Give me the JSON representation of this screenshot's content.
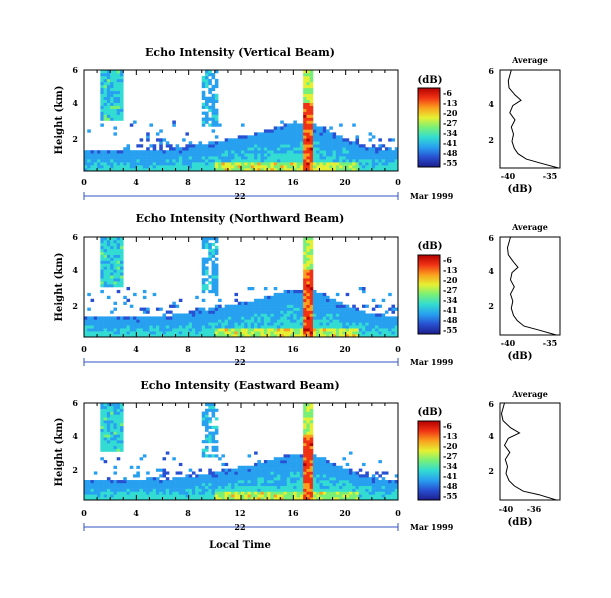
{
  "chart_data": [
    {
      "type": "heatmap",
      "title": "Echo Intensity (Vertical Beam)",
      "ylabel": "Height (km)",
      "x_ticks": [
        "0",
        "4",
        "8",
        "12",
        "16",
        "20",
        "0"
      ],
      "xlim": [
        0,
        24
      ],
      "y_ticks": [
        "2",
        "4",
        "6"
      ],
      "ylim": [
        0.5,
        6
      ],
      "day_label": "22",
      "date_label": "Mar 1999",
      "colorbar": {
        "label": "(dB)",
        "ticks": [
          "-6",
          "-13",
          "-20",
          "-27",
          "-34",
          "-41",
          "-48",
          "-55"
        ]
      },
      "profile": {
        "title": "Average",
        "xlabel": "(dB)",
        "x_ticks": [
          "-40",
          "-35"
        ],
        "xlim": [
          -42,
          -34
        ],
        "y_ticks": [
          "2",
          "4",
          "6"
        ],
        "ylim": [
          0.5,
          6
        ],
        "heights": [
          0.5,
          0.8,
          1.0,
          1.3,
          1.6,
          2.0,
          2.4,
          2.8,
          3.2,
          3.6,
          4.0,
          4.3,
          4.6,
          5.0,
          5.4,
          6.0
        ],
        "values": [
          -34.2,
          -36.8,
          -38.5,
          -39.6,
          -40.1,
          -40.4,
          -40.2,
          -40.5,
          -40.0,
          -40.7,
          -40.3,
          -39.2,
          -40.0,
          -40.8,
          -40.9,
          -40.5
        ]
      }
    },
    {
      "type": "heatmap",
      "title": "Echo Intensity (Northward Beam)",
      "ylabel": "Height (km)",
      "x_ticks": [
        "0",
        "4",
        "8",
        "12",
        "16",
        "20",
        "0"
      ],
      "xlim": [
        0,
        24
      ],
      "y_ticks": [
        "2",
        "4",
        "6"
      ],
      "ylim": [
        0.5,
        6
      ],
      "day_label": "22",
      "date_label": "Mar 1999",
      "colorbar": {
        "label": "(dB)",
        "ticks": [
          "-6",
          "-13",
          "-20",
          "-27",
          "-34",
          "-41",
          "-48",
          "-55"
        ]
      },
      "profile": {
        "title": "Average",
        "xlabel": "(dB)",
        "x_ticks": [
          "-40",
          "-35"
        ],
        "xlim": [
          -42,
          -34
        ],
        "y_ticks": [
          "2",
          "4",
          "6"
        ],
        "ylim": [
          0.5,
          6
        ],
        "heights": [
          0.5,
          0.8,
          1.0,
          1.3,
          1.6,
          2.0,
          2.4,
          2.8,
          3.2,
          3.6,
          4.0,
          4.3,
          4.6,
          5.0,
          5.4,
          6.0
        ],
        "values": [
          -34.5,
          -37.0,
          -38.8,
          -39.7,
          -40.2,
          -40.5,
          -40.3,
          -40.6,
          -40.1,
          -40.6,
          -40.4,
          -39.6,
          -40.2,
          -40.9,
          -41.0,
          -40.6
        ]
      }
    },
    {
      "type": "heatmap",
      "title": "Echo Intensity (Eastward Beam)",
      "ylabel": "Height (km)",
      "xlabel": "Local Time",
      "x_ticks": [
        "0",
        "4",
        "8",
        "12",
        "16",
        "20",
        "0"
      ],
      "xlim": [
        0,
        24
      ],
      "y_ticks": [
        "2",
        "4",
        "6"
      ],
      "ylim": [
        0.5,
        6
      ],
      "day_label": "22",
      "date_label": "Mar 1999",
      "colorbar": {
        "label": "(dB)",
        "ticks": [
          "-6",
          "-13",
          "-20",
          "-27",
          "-34",
          "-41",
          "-48",
          "-55"
        ]
      },
      "profile": {
        "title": "Average",
        "xlabel": "(dB)",
        "x_ticks": [
          "-40",
          "-36"
        ],
        "xlim": [
          -41,
          -33
        ],
        "y_ticks": [
          "2",
          "4",
          "6"
        ],
        "ylim": [
          0.5,
          6
        ],
        "heights": [
          0.5,
          0.8,
          1.0,
          1.3,
          1.6,
          2.0,
          2.4,
          2.8,
          3.2,
          3.6,
          4.0,
          4.3,
          4.6,
          5.0,
          5.4,
          6.0
        ],
        "values": [
          -33.5,
          -35.8,
          -37.9,
          -39.1,
          -39.8,
          -40.2,
          -40.0,
          -40.3,
          -39.7,
          -40.4,
          -39.9,
          -38.4,
          -39.6,
          -40.6,
          -40.8,
          -40.4
        ]
      }
    }
  ],
  "colors": {
    "colormap": [
      "#1e1e8c",
      "#2850d2",
      "#28a0f0",
      "#32dcd2",
      "#78f078",
      "#e6f032",
      "#faa01e",
      "#f03214",
      "#b40000"
    ],
    "axis": "#000000",
    "timeline": "#3050c0"
  }
}
